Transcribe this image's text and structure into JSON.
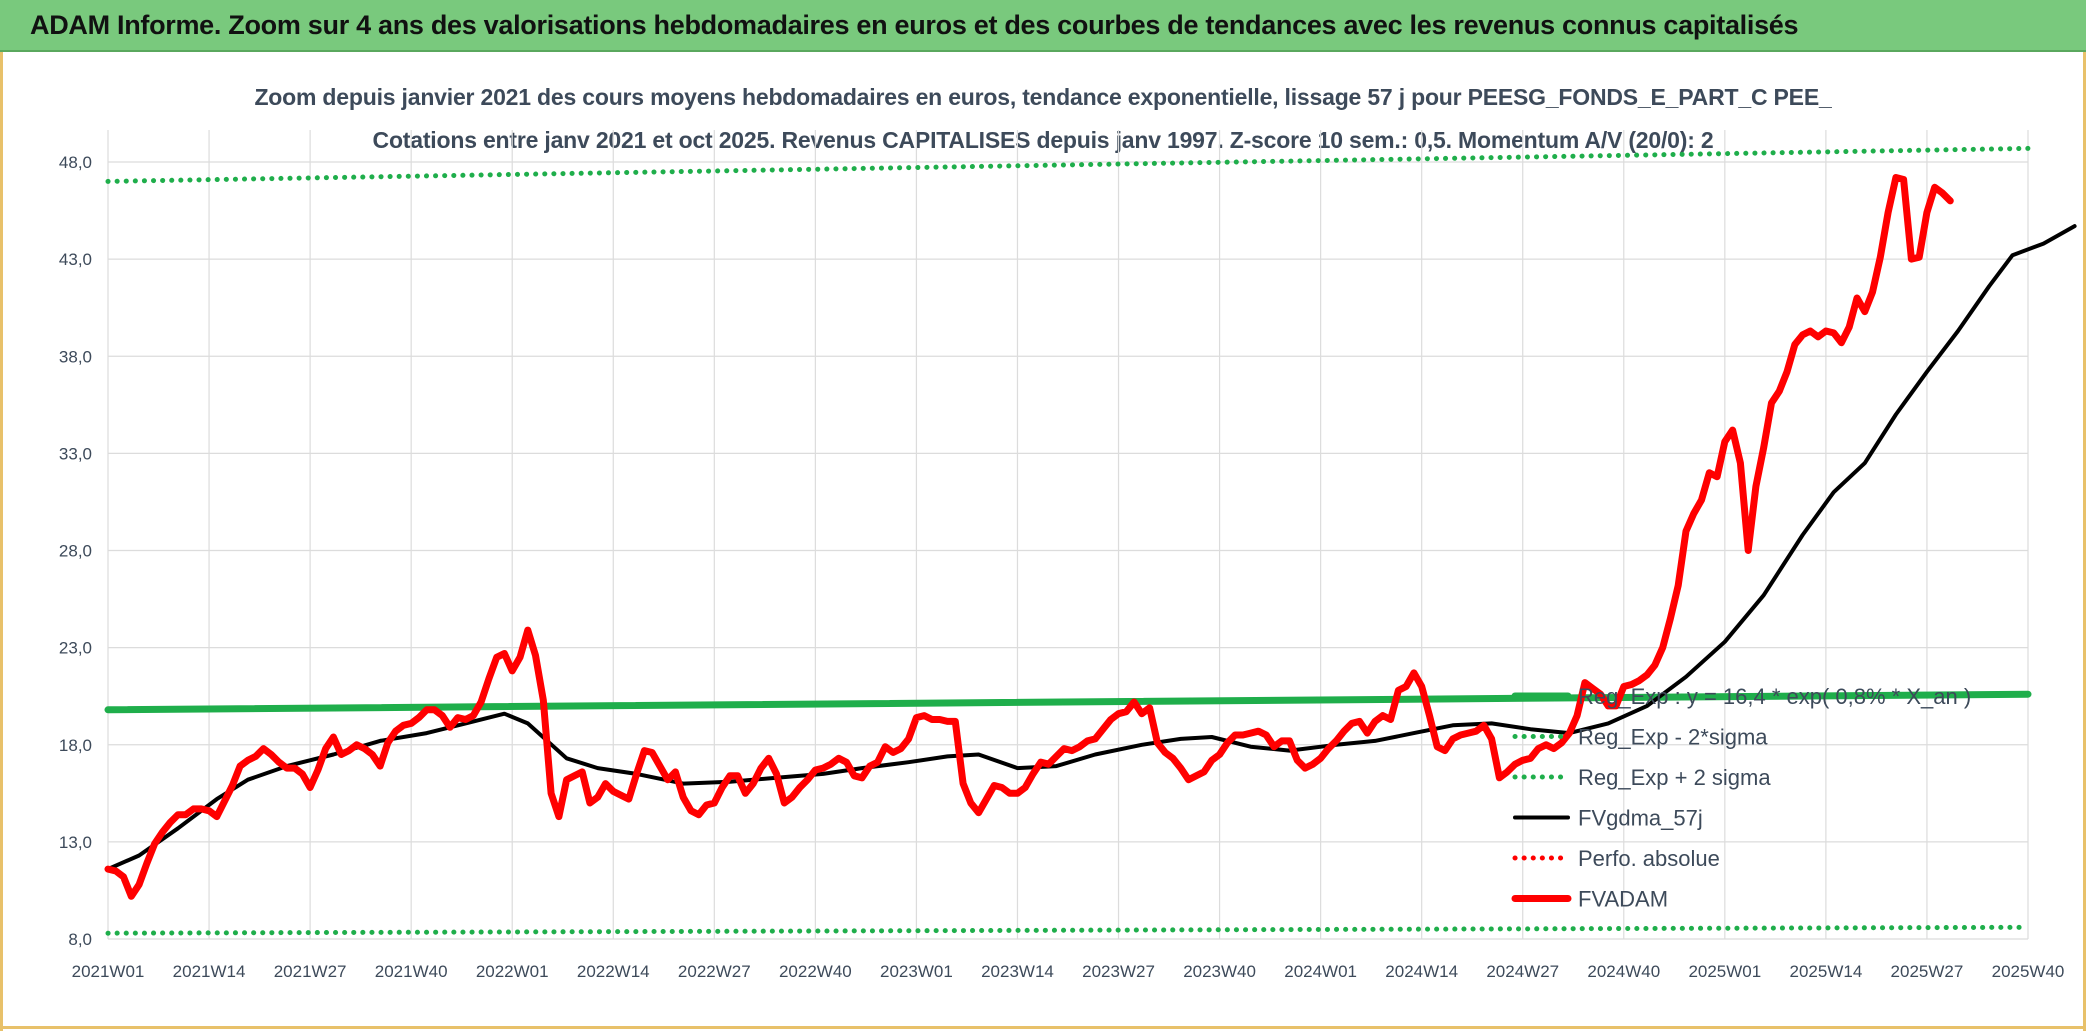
{
  "header": {
    "title": "ADAM Informe. Zoom sur 4 ans des valorisations hebdomadaires en euros et des courbes de tendances avec les revenus connus capitalisés"
  },
  "chart_data": {
    "type": "line",
    "title": "Zoom depuis janvier 2021 des cours moyens hebdomadaires en euros, tendance exponentielle, lissage 57 j pour PEESG_FONDS_E_PART_C PEE_",
    "subtitle": "Cotations entre janv 2021 et oct 2025. Revenus CAPITALISES depuis janv 1997. Z-score 10 sem.: 0,5. Momentum A/V (20/0): 2",
    "xlabel": "",
    "ylabel": "",
    "ylim": [
      8.0,
      49.0
    ],
    "y_ticks": [
      "8,0",
      "13,0",
      "18,0",
      "23,0",
      "28,0",
      "33,0",
      "38,0",
      "43,0",
      "48,0"
    ],
    "x_ticks": [
      "2021W01",
      "2021W14",
      "2021W27",
      "2021W40",
      "2022W01",
      "2022W14",
      "2022W27",
      "2022W40",
      "2023W01",
      "2023W14",
      "2023W27",
      "2023W40",
      "2024W01",
      "2024W14",
      "2024W27",
      "2024W40",
      "2025W01",
      "2025W14",
      "2025W27",
      "2025W40"
    ],
    "grid": true,
    "legend_position": "right",
    "x_index": [
      0,
      13,
      26,
      39,
      52,
      65,
      78,
      91,
      104,
      117,
      130,
      143,
      156,
      169,
      182,
      195,
      208,
      221,
      234,
      247
    ],
    "series": [
      {
        "name": "Reg_Exp : y = 16,4 * exp( 0,8% * X_an )",
        "color": "#1fae4b",
        "style": "solid-thick",
        "points": [
          [
            0,
            19.8
          ],
          [
            247,
            20.6
          ]
        ]
      },
      {
        "name": "Reg_Exp - 2*sigma",
        "color": "#1fae4b",
        "style": "dotted",
        "points": [
          [
            0,
            8.3
          ],
          [
            247,
            8.6
          ]
        ]
      },
      {
        "name": "Reg_Exp + 2 sigma",
        "color": "#1fae4b",
        "style": "dotted",
        "points": [
          [
            0,
            47.0
          ],
          [
            247,
            48.7
          ]
        ]
      },
      {
        "name": "FVgdma_57j",
        "color": "#000000",
        "style": "solid",
        "points": [
          [
            0,
            11.6
          ],
          [
            4,
            12.3
          ],
          [
            9,
            13.7
          ],
          [
            14,
            15.2
          ],
          [
            18,
            16.2
          ],
          [
            23,
            16.9
          ],
          [
            29,
            17.5
          ],
          [
            35,
            18.2
          ],
          [
            41,
            18.6
          ],
          [
            46,
            19.1
          ],
          [
            51,
            19.6
          ],
          [
            54,
            19.1
          ],
          [
            59,
            17.3
          ],
          [
            63,
            16.8
          ],
          [
            68,
            16.5
          ],
          [
            74,
            16.0
          ],
          [
            80,
            16.1
          ],
          [
            86,
            16.3
          ],
          [
            92,
            16.5
          ],
          [
            97,
            16.8
          ],
          [
            103,
            17.1
          ],
          [
            108,
            17.4
          ],
          [
            112,
            17.5
          ],
          [
            117,
            16.8
          ],
          [
            122,
            16.9
          ],
          [
            127,
            17.5
          ],
          [
            133,
            18.0
          ],
          [
            138,
            18.3
          ],
          [
            142,
            18.4
          ],
          [
            147,
            17.9
          ],
          [
            152,
            17.7
          ],
          [
            158,
            18.0
          ],
          [
            163,
            18.2
          ],
          [
            168,
            18.6
          ],
          [
            173,
            19.0
          ],
          [
            178,
            19.1
          ],
          [
            183,
            18.8
          ],
          [
            188,
            18.6
          ],
          [
            193,
            19.1
          ],
          [
            198,
            20.0
          ],
          [
            203,
            21.5
          ],
          [
            208,
            23.3
          ],
          [
            213,
            25.7
          ],
          [
            218,
            28.8
          ],
          [
            222,
            31.0
          ],
          [
            226,
            32.5
          ],
          [
            230,
            35.0
          ],
          [
            234,
            37.2
          ],
          [
            238,
            39.3
          ],
          [
            242,
            41.6
          ],
          [
            245,
            43.2
          ],
          [
            249,
            43.8
          ],
          [
            253,
            44.7
          ]
        ]
      },
      {
        "name": "Perfo. absolue",
        "color": "#ff0000",
        "style": "dotted",
        "points": []
      },
      {
        "name": "FVADAM",
        "color": "#ff0000",
        "style": "solid-thick",
        "points": [
          [
            0,
            11.6
          ],
          [
            1,
            11.5
          ],
          [
            2,
            11.2
          ],
          [
            3,
            10.2
          ],
          [
            4,
            10.8
          ],
          [
            5,
            11.9
          ],
          [
            6,
            12.9
          ],
          [
            7,
            13.5
          ],
          [
            8,
            14.0
          ],
          [
            9,
            14.4
          ],
          [
            10,
            14.4
          ],
          [
            11,
            14.7
          ],
          [
            12,
            14.7
          ],
          [
            13,
            14.6
          ],
          [
            14,
            14.3
          ],
          [
            15,
            15.1
          ],
          [
            16,
            15.9
          ],
          [
            17,
            16.9
          ],
          [
            18,
            17.2
          ],
          [
            19,
            17.4
          ],
          [
            20,
            17.8
          ],
          [
            21,
            17.5
          ],
          [
            22,
            17.1
          ],
          [
            23,
            16.8
          ],
          [
            24,
            16.8
          ],
          [
            25,
            16.5
          ],
          [
            26,
            15.8
          ],
          [
            27,
            16.7
          ],
          [
            28,
            17.8
          ],
          [
            29,
            18.4
          ],
          [
            30,
            17.5
          ],
          [
            31,
            17.7
          ],
          [
            32,
            18.0
          ],
          [
            33,
            17.8
          ],
          [
            34,
            17.5
          ],
          [
            35,
            16.9
          ],
          [
            36,
            18.1
          ],
          [
            37,
            18.7
          ],
          [
            38,
            19.0
          ],
          [
            39,
            19.1
          ],
          [
            40,
            19.4
          ],
          [
            41,
            19.8
          ],
          [
            42,
            19.8
          ],
          [
            43,
            19.5
          ],
          [
            44,
            18.9
          ],
          [
            45,
            19.4
          ],
          [
            46,
            19.3
          ],
          [
            47,
            19.5
          ],
          [
            48,
            20.2
          ],
          [
            49,
            21.4
          ],
          [
            50,
            22.5
          ],
          [
            51,
            22.7
          ],
          [
            52,
            21.8
          ],
          [
            53,
            22.5
          ],
          [
            54,
            23.9
          ],
          [
            55,
            22.6
          ],
          [
            56,
            20.3
          ],
          [
            57,
            15.5
          ],
          [
            58,
            14.3
          ],
          [
            59,
            16.2
          ],
          [
            60,
            16.4
          ],
          [
            61,
            16.6
          ],
          [
            62,
            15.0
          ],
          [
            63,
            15.3
          ],
          [
            64,
            16.0
          ],
          [
            65,
            15.6
          ],
          [
            66,
            15.4
          ],
          [
            67,
            15.2
          ],
          [
            68,
            16.5
          ],
          [
            69,
            17.7
          ],
          [
            70,
            17.6
          ],
          [
            71,
            16.9
          ],
          [
            72,
            16.2
          ],
          [
            73,
            16.6
          ],
          [
            74,
            15.3
          ],
          [
            75,
            14.6
          ],
          [
            76,
            14.4
          ],
          [
            77,
            14.9
          ],
          [
            78,
            15.0
          ],
          [
            79,
            15.8
          ],
          [
            80,
            16.4
          ],
          [
            81,
            16.4
          ],
          [
            82,
            15.5
          ],
          [
            83,
            16.0
          ],
          [
            84,
            16.8
          ],
          [
            85,
            17.3
          ],
          [
            86,
            16.5
          ],
          [
            87,
            15.0
          ],
          [
            88,
            15.3
          ],
          [
            89,
            15.8
          ],
          [
            90,
            16.2
          ],
          [
            91,
            16.7
          ],
          [
            92,
            16.8
          ],
          [
            93,
            17.0
          ],
          [
            94,
            17.3
          ],
          [
            95,
            17.1
          ],
          [
            96,
            16.4
          ],
          [
            97,
            16.3
          ],
          [
            98,
            16.9
          ],
          [
            99,
            17.1
          ],
          [
            100,
            17.9
          ],
          [
            101,
            17.6
          ],
          [
            102,
            17.8
          ],
          [
            103,
            18.3
          ],
          [
            104,
            19.4
          ],
          [
            105,
            19.5
          ],
          [
            106,
            19.3
          ],
          [
            107,
            19.3
          ],
          [
            108,
            19.2
          ],
          [
            109,
            19.2
          ],
          [
            110,
            16.0
          ],
          [
            111,
            15.0
          ],
          [
            112,
            14.5
          ],
          [
            113,
            15.2
          ],
          [
            114,
            15.9
          ],
          [
            115,
            15.8
          ],
          [
            116,
            15.5
          ],
          [
            117,
            15.5
          ],
          [
            118,
            15.8
          ],
          [
            119,
            16.5
          ],
          [
            120,
            17.1
          ],
          [
            121,
            17.0
          ],
          [
            122,
            17.4
          ],
          [
            123,
            17.8
          ],
          [
            124,
            17.7
          ],
          [
            125,
            17.9
          ],
          [
            126,
            18.2
          ],
          [
            127,
            18.3
          ],
          [
            128,
            18.8
          ],
          [
            129,
            19.3
          ],
          [
            130,
            19.6
          ],
          [
            131,
            19.7
          ],
          [
            132,
            20.2
          ],
          [
            133,
            19.6
          ],
          [
            134,
            19.9
          ],
          [
            135,
            18.1
          ],
          [
            136,
            17.6
          ],
          [
            137,
            17.3
          ],
          [
            138,
            16.8
          ],
          [
            139,
            16.2
          ],
          [
            140,
            16.4
          ],
          [
            141,
            16.6
          ],
          [
            142,
            17.2
          ],
          [
            143,
            17.5
          ],
          [
            144,
            18.1
          ],
          [
            145,
            18.5
          ],
          [
            146,
            18.5
          ],
          [
            147,
            18.6
          ],
          [
            148,
            18.7
          ],
          [
            149,
            18.5
          ],
          [
            150,
            17.9
          ],
          [
            151,
            18.2
          ],
          [
            152,
            18.2
          ],
          [
            153,
            17.2
          ],
          [
            154,
            16.8
          ],
          [
            155,
            17.0
          ],
          [
            156,
            17.3
          ],
          [
            157,
            17.8
          ],
          [
            158,
            18.2
          ],
          [
            159,
            18.7
          ],
          [
            160,
            19.1
          ],
          [
            161,
            19.2
          ],
          [
            162,
            18.6
          ],
          [
            163,
            19.2
          ],
          [
            164,
            19.5
          ],
          [
            165,
            19.3
          ],
          [
            166,
            20.8
          ],
          [
            167,
            21.0
          ],
          [
            168,
            21.7
          ],
          [
            169,
            21.0
          ],
          [
            170,
            19.5
          ],
          [
            171,
            17.9
          ],
          [
            172,
            17.7
          ],
          [
            173,
            18.3
          ],
          [
            174,
            18.5
          ],
          [
            175,
            18.6
          ],
          [
            176,
            18.7
          ],
          [
            177,
            19.0
          ],
          [
            178,
            18.3
          ],
          [
            179,
            16.3
          ],
          [
            180,
            16.6
          ],
          [
            181,
            17.0
          ],
          [
            182,
            17.2
          ],
          [
            183,
            17.3
          ],
          [
            184,
            17.8
          ],
          [
            185,
            18.0
          ],
          [
            186,
            17.8
          ],
          [
            187,
            18.1
          ],
          [
            188,
            18.6
          ],
          [
            189,
            19.5
          ],
          [
            190,
            21.2
          ],
          [
            191,
            20.9
          ],
          [
            192,
            20.6
          ],
          [
            193,
            20.0
          ],
          [
            194,
            20.0
          ],
          [
            195,
            21.0
          ],
          [
            196,
            21.1
          ],
          [
            197,
            21.3
          ],
          [
            198,
            21.6
          ],
          [
            199,
            22.1
          ],
          [
            200,
            23.0
          ],
          [
            201,
            24.5
          ],
          [
            202,
            26.2
          ],
          [
            203,
            29.0
          ],
          [
            204,
            29.9
          ],
          [
            205,
            30.6
          ],
          [
            206,
            32.0
          ],
          [
            207,
            31.8
          ],
          [
            208,
            33.6
          ],
          [
            209,
            34.2
          ],
          [
            210,
            32.5
          ],
          [
            211,
            28.0
          ],
          [
            212,
            31.3
          ],
          [
            213,
            33.3
          ],
          [
            214,
            35.6
          ],
          [
            215,
            36.2
          ],
          [
            216,
            37.2
          ],
          [
            217,
            38.6
          ],
          [
            218,
            39.1
          ],
          [
            219,
            39.3
          ],
          [
            220,
            39.0
          ],
          [
            221,
            39.3
          ],
          [
            222,
            39.2
          ],
          [
            223,
            38.7
          ],
          [
            224,
            39.5
          ],
          [
            225,
            41.0
          ],
          [
            226,
            40.3
          ],
          [
            227,
            41.3
          ],
          [
            228,
            43.1
          ],
          [
            229,
            45.4
          ],
          [
            230,
            47.2
          ],
          [
            231,
            47.1
          ],
          [
            232,
            43.0
          ],
          [
            233,
            43.1
          ],
          [
            234,
            45.4
          ],
          [
            235,
            46.7
          ],
          [
            236,
            46.4
          ],
          [
            237,
            46.0
          ]
        ]
      }
    ]
  }
}
